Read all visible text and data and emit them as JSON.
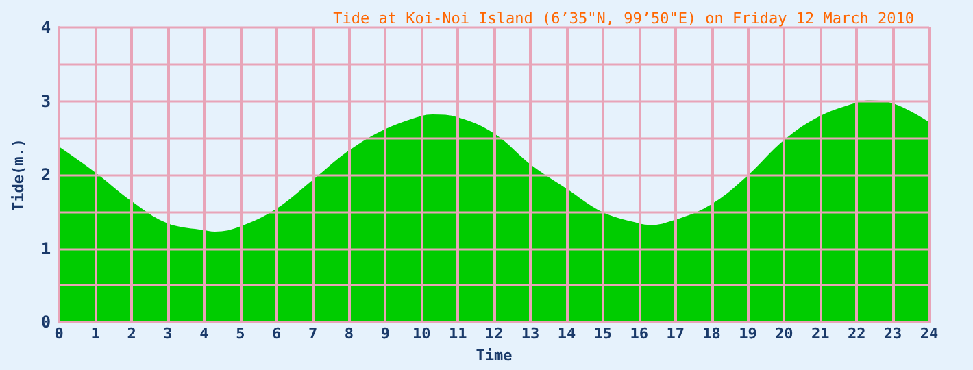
{
  "chart_data": {
    "type": "area",
    "title": "Tide at Koi-Noi Island (6’35\"N, 99’50\"E) on Friday 12 March 2010",
    "xlabel": "Time",
    "ylabel": "Tide(m.)",
    "x": [
      0,
      1,
      2,
      3,
      4,
      4.3,
      5,
      6,
      7,
      8,
      9,
      10,
      10.3,
      11,
      12,
      13,
      14,
      15,
      16,
      16.3,
      17,
      18,
      19,
      20,
      21,
      22,
      22.3,
      23,
      24
    ],
    "series": [
      {
        "color": "#00cc00",
        "values": [
          2.37,
          2.02,
          1.63,
          1.33,
          1.24,
          1.22,
          1.29,
          1.53,
          1.92,
          2.32,
          2.61,
          2.79,
          2.81,
          2.77,
          2.55,
          2.13,
          1.8,
          1.48,
          1.33,
          1.31,
          1.38,
          1.59,
          1.98,
          2.46,
          2.79,
          2.97,
          3.0,
          2.96,
          2.7
        ]
      }
    ],
    "xlim": [
      0,
      24
    ],
    "xticks": [
      0,
      1,
      2,
      3,
      4,
      5,
      6,
      7,
      8,
      9,
      10,
      11,
      12,
      13,
      14,
      15,
      16,
      17,
      18,
      19,
      20,
      21,
      22,
      23,
      24
    ],
    "ylim": [
      0,
      4
    ],
    "yticks": [
      0,
      {
        "value": 0.5,
        "label": null
      },
      1,
      {
        "value": 1.5,
        "label": null
      },
      2,
      {
        "value": 2.5,
        "label": null
      },
      3,
      {
        "value": 3.5,
        "label": null
      },
      4
    ],
    "grid": true,
    "marker": "none"
  }
}
